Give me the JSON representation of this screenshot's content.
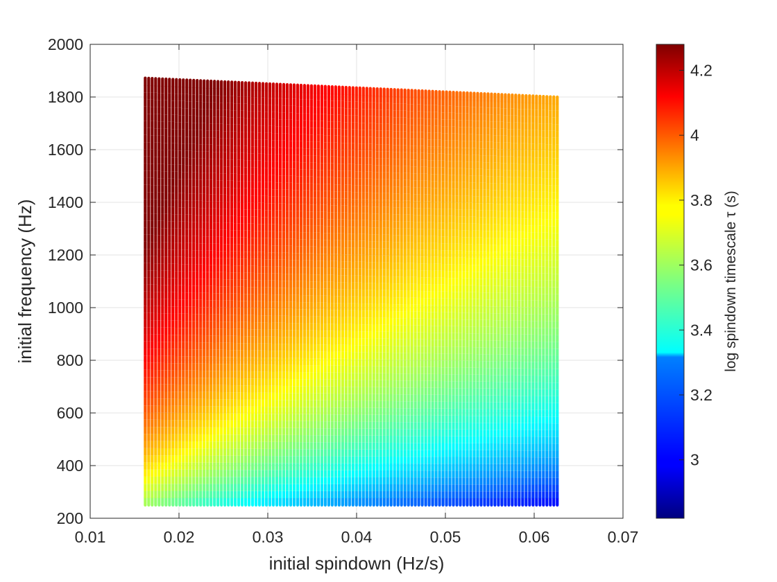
{
  "chart_data": {
    "type": "scatter",
    "xlabel": "initial spindown (Hz/s)",
    "ylabel": "initial frequency (Hz)",
    "colorbar_label": "log spindown timescale τ (s)",
    "xlim": [
      0.01,
      0.07
    ],
    "ylim": [
      200,
      2000
    ],
    "x_ticks": [
      "0.01",
      "0.02",
      "0.03",
      "0.04",
      "0.05",
      "0.06",
      "0.07"
    ],
    "y_ticks": [
      "200",
      "400",
      "600",
      "800",
      "1000",
      "1200",
      "1400",
      "1600",
      "1800",
      "2000"
    ],
    "colorbar_range": [
      2.82,
      4.28
    ],
    "colorbar_ticks": [
      "3",
      "3.2",
      "3.4",
      "3.6",
      "3.8",
      "4",
      "4.2"
    ],
    "colormap": "jet",
    "grid": true,
    "x_range": [
      0.0162,
      0.0626
    ],
    "x_count": 120,
    "y_min": 250,
    "y_max_at_x_min": 1872,
    "y_max_at_x_max": 1800,
    "color_value": "log10(f0 / (4 * fdot))"
  }
}
